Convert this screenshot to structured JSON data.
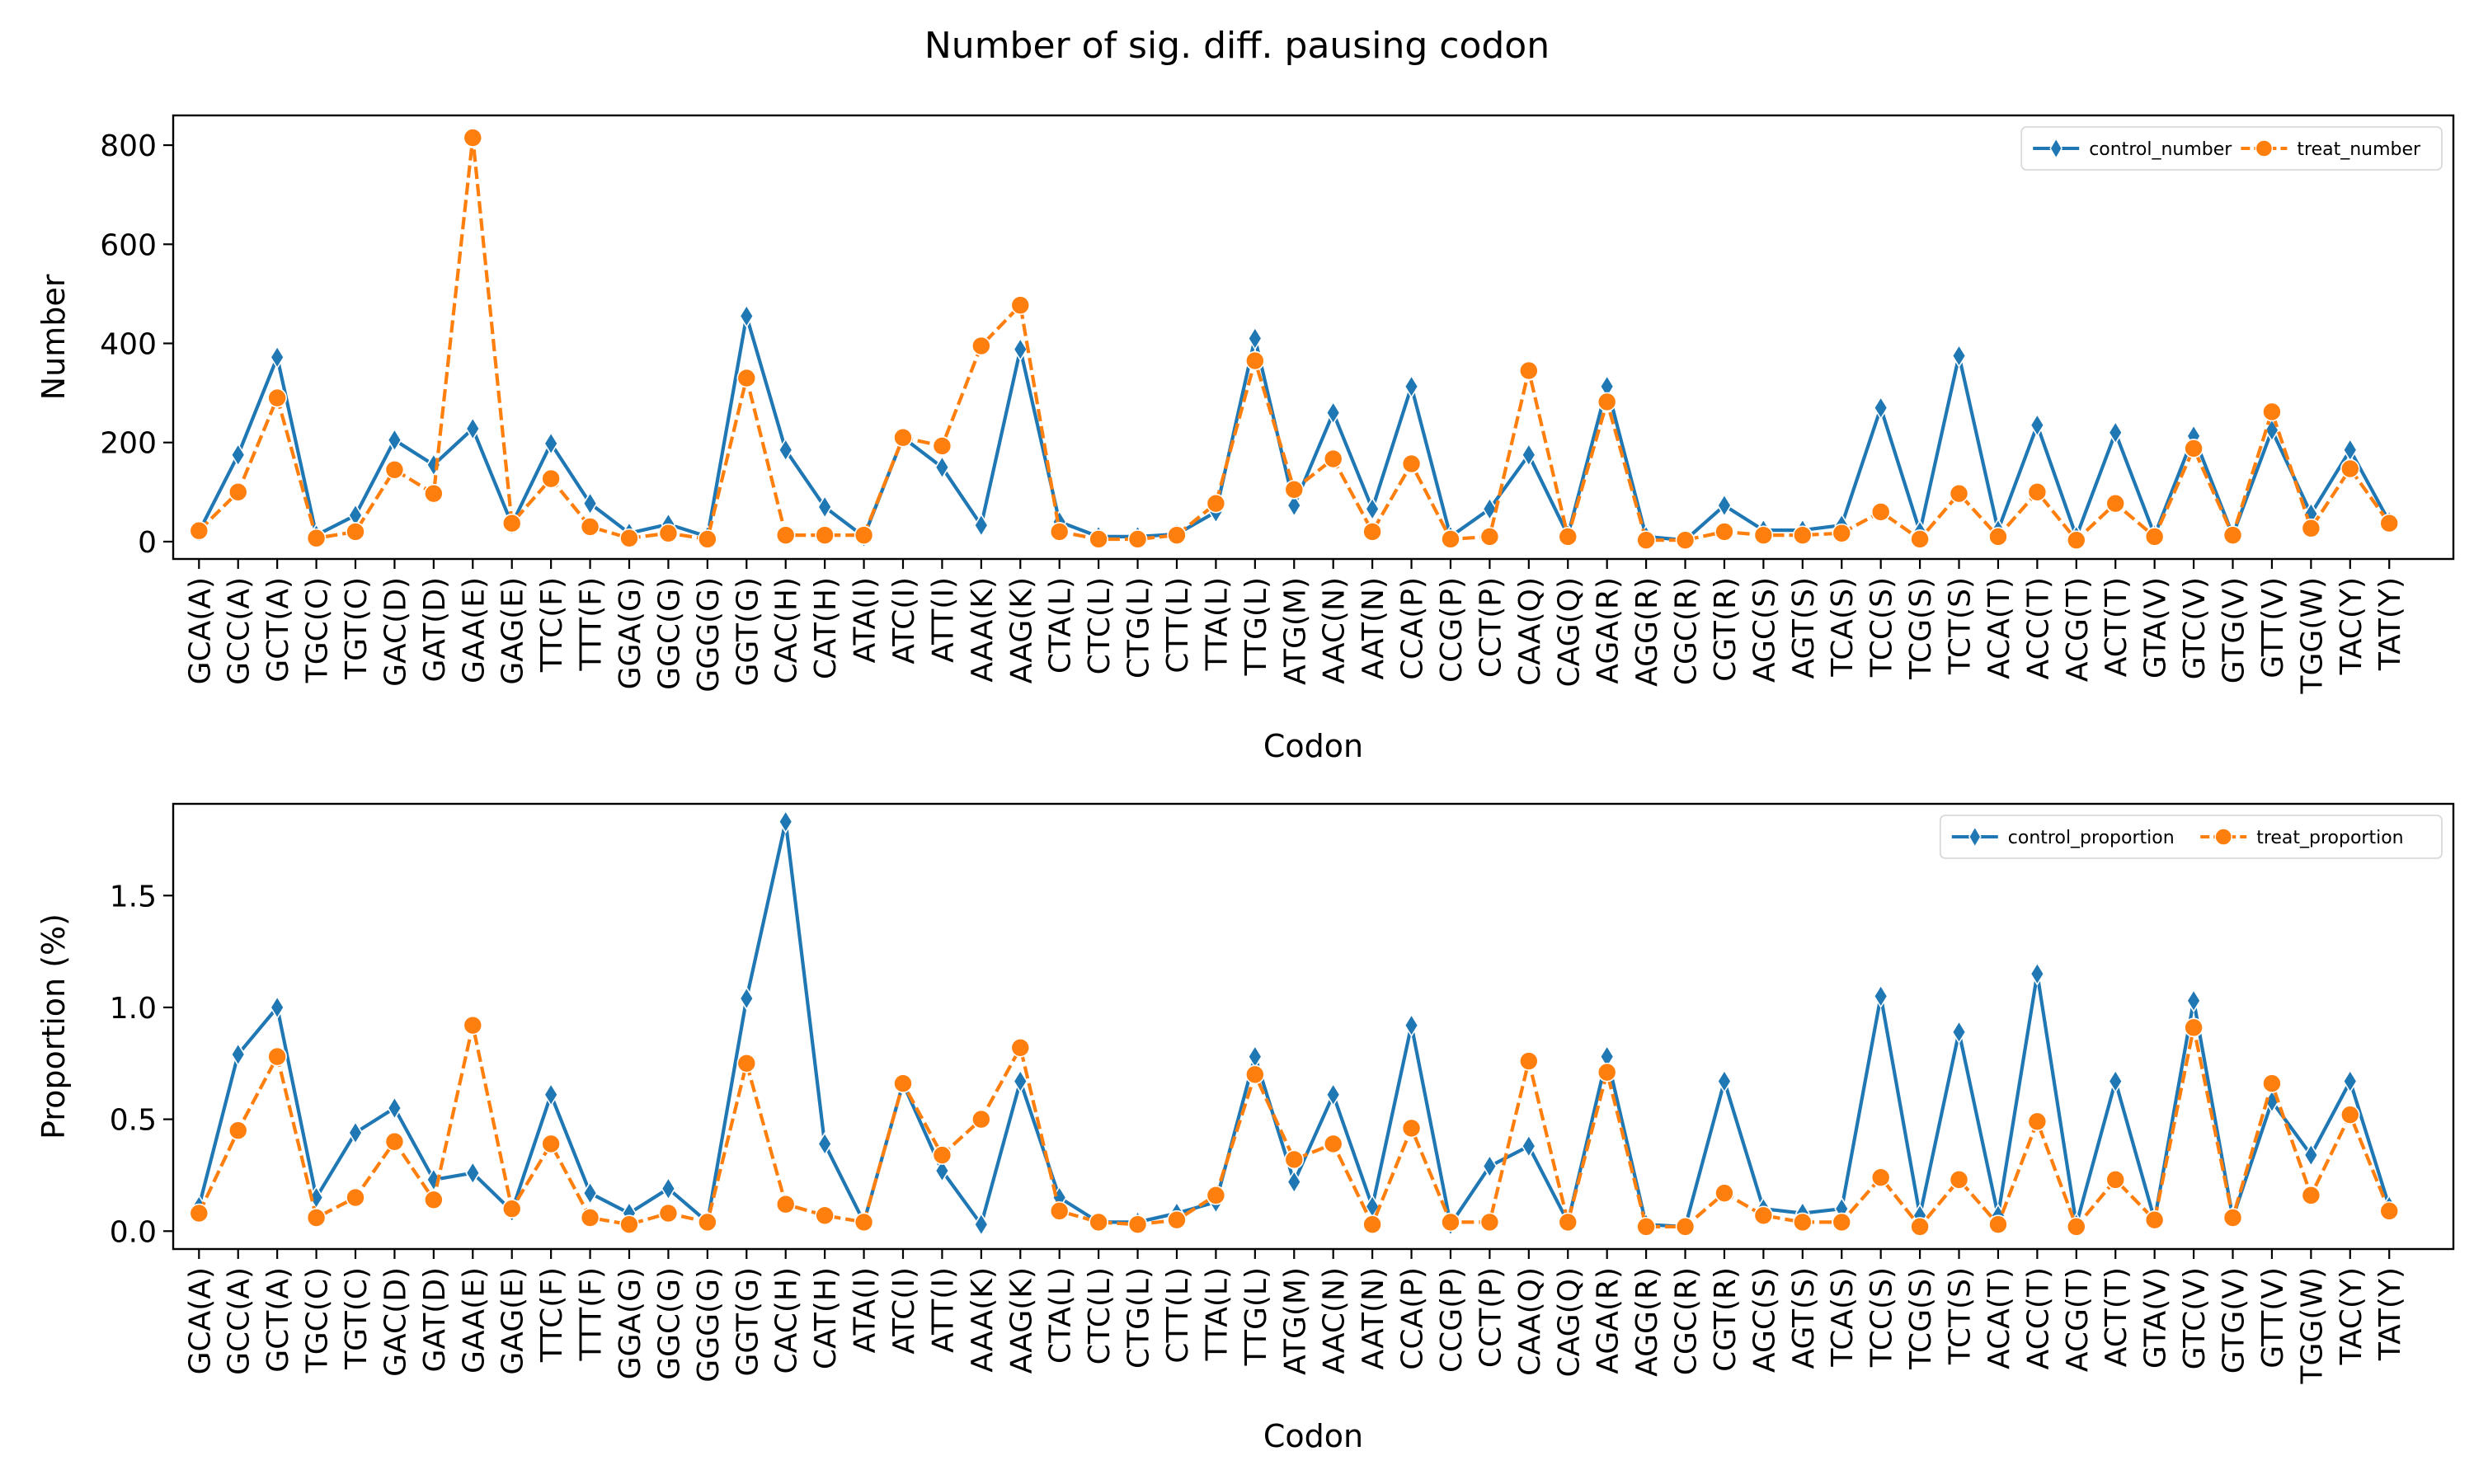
{
  "title": "Number of sig. diff. pausing codon",
  "colors": {
    "control": "#1f77b4",
    "treat": "#ff7f0e"
  },
  "chart_data": [
    {
      "type": "line",
      "xlabel": "Codon",
      "ylabel": "Number",
      "ylim": [
        -35,
        860
      ],
      "yticks": [
        0,
        200,
        400,
        600,
        800
      ],
      "grid": false,
      "legend_placement": "top-right",
      "legend_ncol": 2,
      "categories": [
        "GCA(A)",
        "GCC(A)",
        "GCT(A)",
        "TGC(C)",
        "TGT(C)",
        "GAC(D)",
        "GAT(D)",
        "GAA(E)",
        "GAG(E)",
        "TTC(F)",
        "TTT(F)",
        "GGA(G)",
        "GGC(G)",
        "GGG(G)",
        "GGT(G)",
        "CAC(H)",
        "CAT(H)",
        "ATA(I)",
        "ATC(I)",
        "ATT(I)",
        "AAA(K)",
        "AAG(K)",
        "CTA(L)",
        "CTC(L)",
        "CTG(L)",
        "CTT(L)",
        "TTA(L)",
        "TTG(L)",
        "ATG(M)",
        "AAC(N)",
        "AAT(N)",
        "CCA(P)",
        "CCG(P)",
        "CCT(P)",
        "CAA(Q)",
        "CAG(Q)",
        "AGA(R)",
        "AGG(R)",
        "CGC(R)",
        "CGT(R)",
        "AGC(S)",
        "AGT(S)",
        "TCA(S)",
        "TCC(S)",
        "TCG(S)",
        "TCT(S)",
        "ACA(T)",
        "ACC(T)",
        "ACG(T)",
        "ACT(T)",
        "GTA(V)",
        "GTC(V)",
        "GTG(V)",
        "GTT(V)",
        "TGG(W)",
        "TAC(Y)",
        "TAT(Y)"
      ],
      "series": [
        {
          "name": "control_number",
          "marker": "diamond",
          "linestyle": "solid",
          "values": [
            20,
            175,
            372,
            13,
            53,
            205,
            155,
            228,
            35,
            198,
            77,
            17,
            35,
            10,
            455,
            185,
            70,
            10,
            210,
            150,
            33,
            388,
            40,
            10,
            10,
            15,
            60,
            410,
            73,
            260,
            66,
            313,
            10,
            66,
            175,
            13,
            313,
            10,
            3,
            73,
            23,
            23,
            33,
            270,
            20,
            375,
            23,
            235,
            10,
            220,
            13,
            213,
            13,
            225,
            56,
            185,
            40
          ]
        },
        {
          "name": "treat_number",
          "marker": "circle",
          "linestyle": "dashed",
          "values": [
            22,
            100,
            290,
            7,
            20,
            145,
            97,
            815,
            37,
            127,
            30,
            7,
            17,
            5,
            330,
            13,
            13,
            13,
            210,
            193,
            395,
            477,
            20,
            5,
            5,
            13,
            77,
            365,
            105,
            167,
            20,
            157,
            5,
            10,
            345,
            10,
            282,
            3,
            3,
            20,
            13,
            13,
            17,
            60,
            5,
            97,
            10,
            100,
            3,
            77,
            10,
            188,
            13,
            262,
            27,
            147,
            37
          ]
        }
      ]
    },
    {
      "type": "line",
      "xlabel": "Codon",
      "ylabel": "Proportion (%)",
      "ylim": [
        -0.08,
        1.91
      ],
      "yticks": [
        0.0,
        0.5,
        1.0,
        1.5
      ],
      "grid": false,
      "legend_placement": "top-right",
      "legend_ncol": 2,
      "categories": [
        "GCA(A)",
        "GCC(A)",
        "GCT(A)",
        "TGC(C)",
        "TGT(C)",
        "GAC(D)",
        "GAT(D)",
        "GAA(E)",
        "GAG(E)",
        "TTC(F)",
        "TTT(F)",
        "GGA(G)",
        "GGC(G)",
        "GGG(G)",
        "GGT(G)",
        "CAC(H)",
        "CAT(H)",
        "ATA(I)",
        "ATC(I)",
        "ATT(I)",
        "AAA(K)",
        "AAG(K)",
        "CTA(L)",
        "CTC(L)",
        "CTG(L)",
        "CTT(L)",
        "TTA(L)",
        "TTG(L)",
        "ATG(M)",
        "AAC(N)",
        "AAT(N)",
        "CCA(P)",
        "CCG(P)",
        "CCT(P)",
        "CAA(Q)",
        "CAG(Q)",
        "AGA(R)",
        "AGG(R)",
        "CGC(R)",
        "CGT(R)",
        "AGC(S)",
        "AGT(S)",
        "TCA(S)",
        "TCC(S)",
        "TCG(S)",
        "TCT(S)",
        "ACA(T)",
        "ACC(T)",
        "ACG(T)",
        "ACT(T)",
        "GTA(V)",
        "GTC(V)",
        "GTG(V)",
        "GTT(V)",
        "TGG(W)",
        "TAC(Y)",
        "TAT(Y)"
      ],
      "series": [
        {
          "name": "control_proportion",
          "marker": "diamond",
          "linestyle": "solid",
          "values": [
            0.11,
            0.79,
            1.0,
            0.15,
            0.44,
            0.55,
            0.23,
            0.26,
            0.09,
            0.61,
            0.17,
            0.08,
            0.19,
            0.04,
            1.04,
            1.83,
            0.39,
            0.04,
            0.66,
            0.27,
            0.03,
            0.67,
            0.15,
            0.04,
            0.04,
            0.08,
            0.13,
            0.78,
            0.22,
            0.61,
            0.11,
            0.92,
            0.03,
            0.29,
            0.38,
            0.04,
            0.78,
            0.03,
            0.02,
            0.67,
            0.1,
            0.08,
            0.1,
            1.05,
            0.07,
            0.89,
            0.07,
            1.15,
            0.03,
            0.67,
            0.05,
            1.03,
            0.06,
            0.58,
            0.34,
            0.67,
            0.11
          ]
        },
        {
          "name": "treat_proportion",
          "marker": "circle",
          "linestyle": "dashed",
          "values": [
            0.08,
            0.45,
            0.78,
            0.06,
            0.15,
            0.4,
            0.14,
            0.92,
            0.1,
            0.39,
            0.06,
            0.03,
            0.08,
            0.04,
            0.75,
            0.12,
            0.07,
            0.04,
            0.66,
            0.34,
            0.5,
            0.82,
            0.09,
            0.04,
            0.03,
            0.05,
            0.16,
            0.7,
            0.32,
            0.39,
            0.03,
            0.46,
            0.04,
            0.04,
            0.76,
            0.04,
            0.71,
            0.02,
            0.02,
            0.17,
            0.07,
            0.04,
            0.04,
            0.24,
            0.02,
            0.23,
            0.03,
            0.49,
            0.02,
            0.23,
            0.05,
            0.91,
            0.06,
            0.66,
            0.16,
            0.52,
            0.09
          ]
        }
      ]
    }
  ]
}
